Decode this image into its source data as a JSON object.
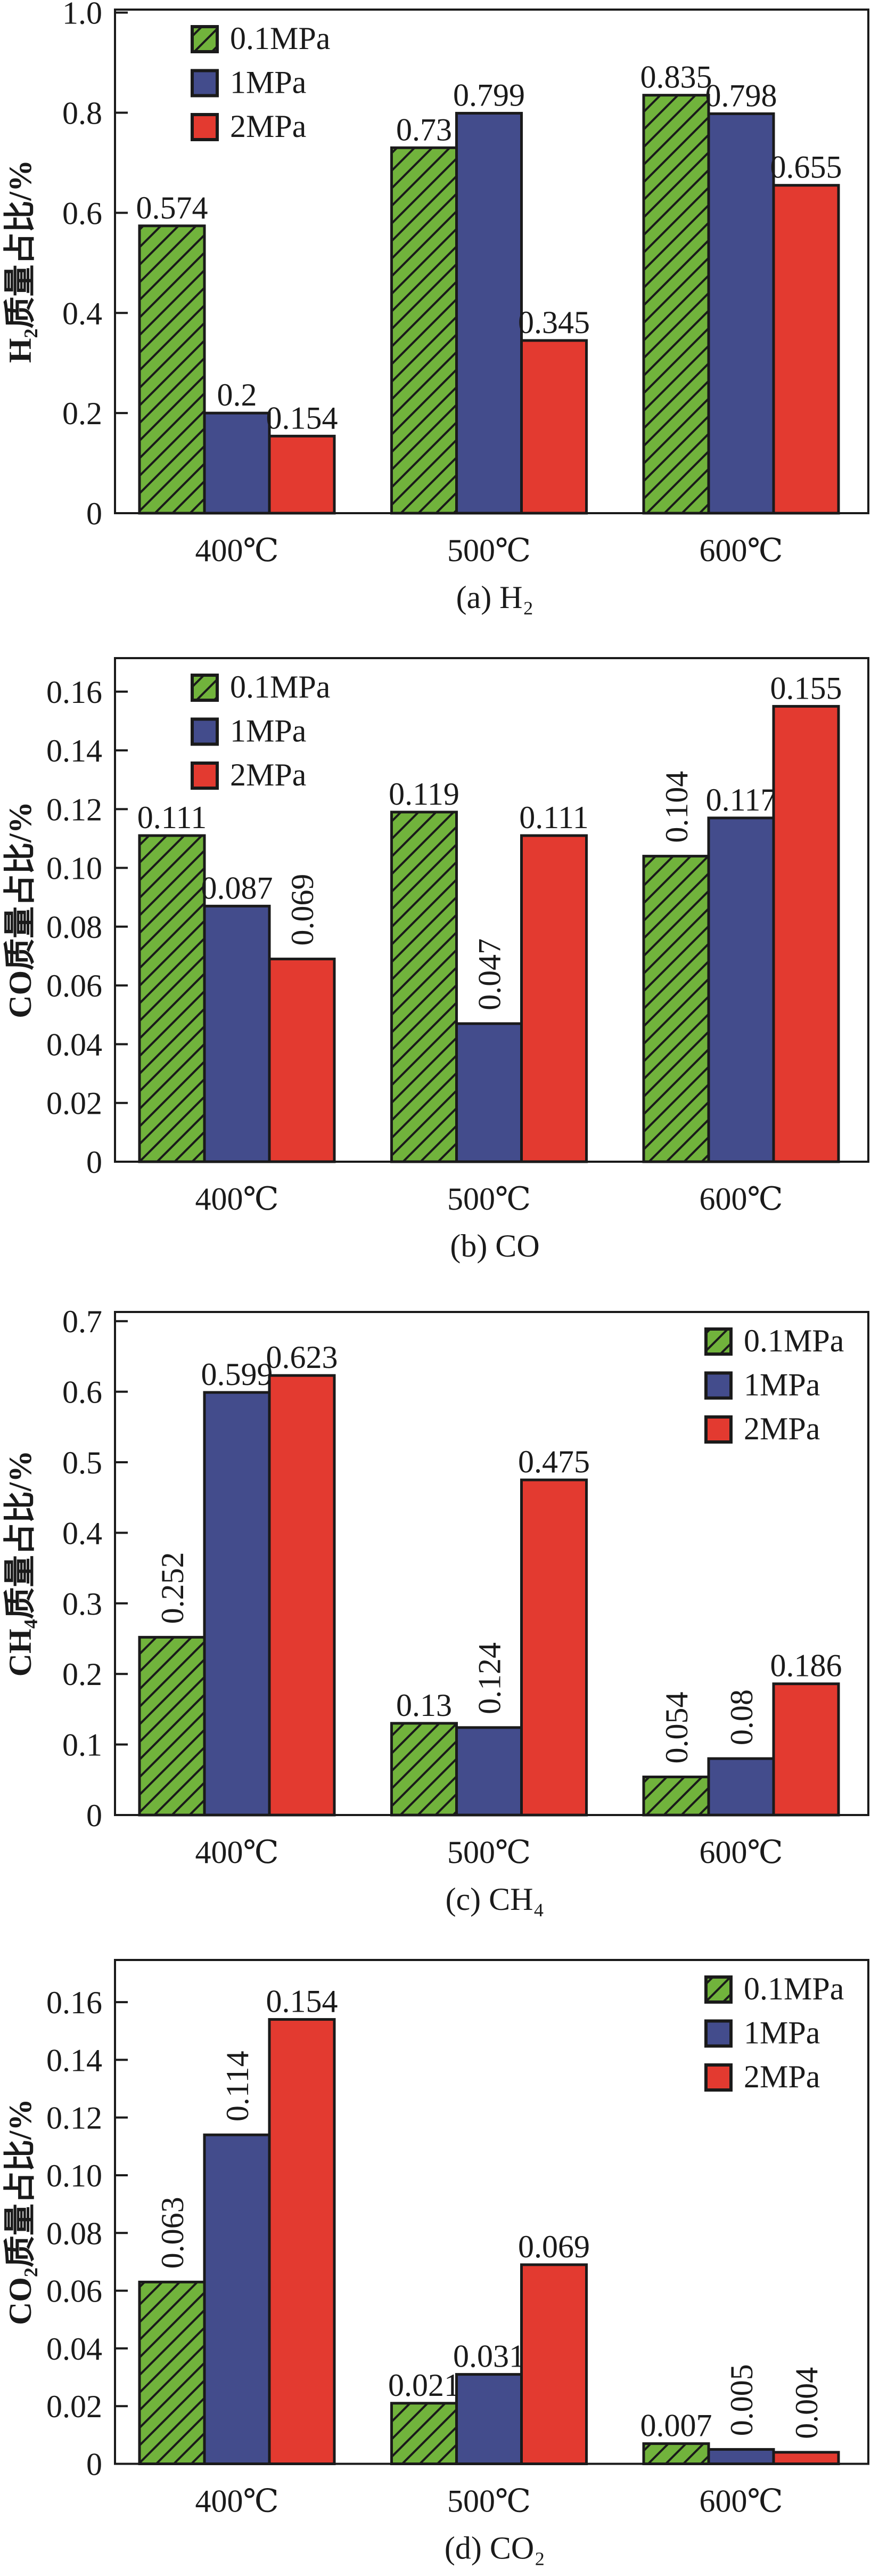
{
  "chart_data": [
    {
      "panel": "a",
      "type": "bar",
      "title": "",
      "caption": "(a) H₂",
      "xlabel": "",
      "ylabel": "H₂质量占比/%",
      "categories": [
        "400℃",
        "500℃",
        "600℃"
      ],
      "ylim": [
        0,
        1.006
      ],
      "yticks": [
        0,
        0.2,
        0.4,
        0.6,
        0.8,
        1.0
      ],
      "ytick_labels": [
        "0",
        "0.2",
        "0.4",
        "0.6",
        "0.8",
        "1.0"
      ],
      "grid": false,
      "legend": "top-left",
      "series": [
        {
          "name": "0.1MPa",
          "color": "#71B33C",
          "pattern": "diagonal-hatch",
          "values": [
            0.574,
            0.73,
            0.835
          ],
          "labels": [
            "0.574",
            "0.73",
            "0.835"
          ],
          "label_orientation": [
            "horizontal",
            "horizontal",
            "horizontal"
          ]
        },
        {
          "name": "1MPa",
          "color": "#434C8C",
          "pattern": "solid",
          "values": [
            0.2,
            0.799,
            0.798
          ],
          "labels": [
            "0.2",
            "0.799",
            "0.798"
          ],
          "label_orientation": [
            "horizontal",
            "horizontal",
            "horizontal"
          ]
        },
        {
          "name": "2MPa",
          "color": "#E33A30",
          "pattern": "solid",
          "values": [
            0.154,
            0.345,
            0.655
          ],
          "labels": [
            "0.154",
            "0.345",
            "0.655"
          ],
          "label_orientation": [
            "horizontal",
            "horizontal",
            "horizontal"
          ]
        }
      ]
    },
    {
      "panel": "b",
      "type": "bar",
      "title": "",
      "caption": "(b) CO",
      "xlabel": "",
      "ylabel": "CO质量占比/%",
      "categories": [
        "400℃",
        "500℃",
        "600℃"
      ],
      "ylim": [
        0,
        0.1714
      ],
      "yticks": [
        0,
        0.02,
        0.04,
        0.06,
        0.08,
        0.1,
        0.12,
        0.14,
        0.16
      ],
      "ytick_labels": [
        "0",
        "0.02",
        "0.04",
        "0.06",
        "0.08",
        "0.10",
        "0.12",
        "0.14",
        "0.16"
      ],
      "grid": false,
      "legend": "top-left",
      "series": [
        {
          "name": "0.1MPa",
          "color": "#71B33C",
          "pattern": "diagonal-hatch",
          "values": [
            0.111,
            0.119,
            0.104
          ],
          "labels": [
            "0.111",
            "0.119",
            "0.104"
          ],
          "label_orientation": [
            "horizontal",
            "horizontal",
            "vertical"
          ]
        },
        {
          "name": "1MPa",
          "color": "#434C8C",
          "pattern": "solid",
          "values": [
            0.087,
            0.047,
            0.117
          ],
          "labels": [
            "0.087",
            "0.047",
            "0.117"
          ],
          "label_orientation": [
            "horizontal",
            "vertical",
            "horizontal"
          ]
        },
        {
          "name": "2MPa",
          "color": "#E33A30",
          "pattern": "solid",
          "values": [
            0.069,
            0.111,
            0.155
          ],
          "labels": [
            "0.069",
            "0.111",
            "0.155"
          ],
          "label_orientation": [
            "vertical",
            "horizontal",
            "horizontal"
          ]
        }
      ]
    },
    {
      "panel": "c",
      "type": "bar",
      "title": "",
      "caption": "(c) CH₄",
      "xlabel": "",
      "ylabel": "CH₄质量占比/%",
      "categories": [
        "400℃",
        "500℃",
        "600℃"
      ],
      "ylim": [
        0,
        0.713
      ],
      "yticks": [
        0,
        0.1,
        0.2,
        0.3,
        0.4,
        0.5,
        0.6,
        0.7
      ],
      "ytick_labels": [
        "0",
        "0.1",
        "0.2",
        "0.3",
        "0.4",
        "0.5",
        "0.6",
        "0.7"
      ],
      "grid": false,
      "legend": "top-right",
      "series": [
        {
          "name": "0.1MPa",
          "color": "#71B33C",
          "pattern": "diagonal-hatch",
          "values": [
            0.252,
            0.13,
            0.054
          ],
          "labels": [
            "0.252",
            "0.13",
            "0.054"
          ],
          "label_orientation": [
            "vertical",
            "horizontal",
            "vertical"
          ]
        },
        {
          "name": "1MPa",
          "color": "#434C8C",
          "pattern": "solid",
          "values": [
            0.599,
            0.124,
            0.08
          ],
          "labels": [
            "0.599",
            "0.124",
            "0.08"
          ],
          "label_orientation": [
            "horizontal",
            "vertical",
            "vertical"
          ]
        },
        {
          "name": "2MPa",
          "color": "#E33A30",
          "pattern": "solid",
          "values": [
            0.623,
            0.475,
            0.186
          ],
          "labels": [
            "0.623",
            "0.475",
            "0.186"
          ],
          "label_orientation": [
            "horizontal",
            "horizontal",
            "horizontal"
          ]
        }
      ]
    },
    {
      "panel": "d",
      "type": "bar",
      "title": "",
      "caption": "(d) CO₂",
      "xlabel": "",
      "ylabel": "CO₂质量占比/%",
      "categories": [
        "400℃",
        "500℃",
        "600℃"
      ],
      "ylim": [
        0,
        0.1746
      ],
      "yticks": [
        0,
        0.02,
        0.04,
        0.06,
        0.08,
        0.1,
        0.12,
        0.14,
        0.16
      ],
      "ytick_labels": [
        "0",
        "0.02",
        "0.04",
        "0.06",
        "0.08",
        "0.10",
        "0.12",
        "0.14",
        "0.16"
      ],
      "grid": false,
      "legend": "top-right",
      "series": [
        {
          "name": "0.1MPa",
          "color": "#71B33C",
          "pattern": "diagonal-hatch",
          "values": [
            0.063,
            0.021,
            0.007
          ],
          "labels": [
            "0.063",
            "0.021",
            "0.007"
          ],
          "label_orientation": [
            "vertical",
            "horizontal",
            "horizontal"
          ]
        },
        {
          "name": "1MPa",
          "color": "#434C8C",
          "pattern": "solid",
          "values": [
            0.114,
            0.031,
            0.005
          ],
          "labels": [
            "0.114",
            "0.031",
            "0.005"
          ],
          "label_orientation": [
            "vertical",
            "horizontal",
            "vertical"
          ]
        },
        {
          "name": "2MPa",
          "color": "#E33A30",
          "pattern": "solid",
          "values": [
            0.154,
            0.069,
            0.004
          ],
          "labels": [
            "0.154",
            "0.069",
            "0.004"
          ],
          "label_orientation": [
            "horizontal",
            "horizontal",
            "vertical"
          ]
        }
      ]
    }
  ]
}
